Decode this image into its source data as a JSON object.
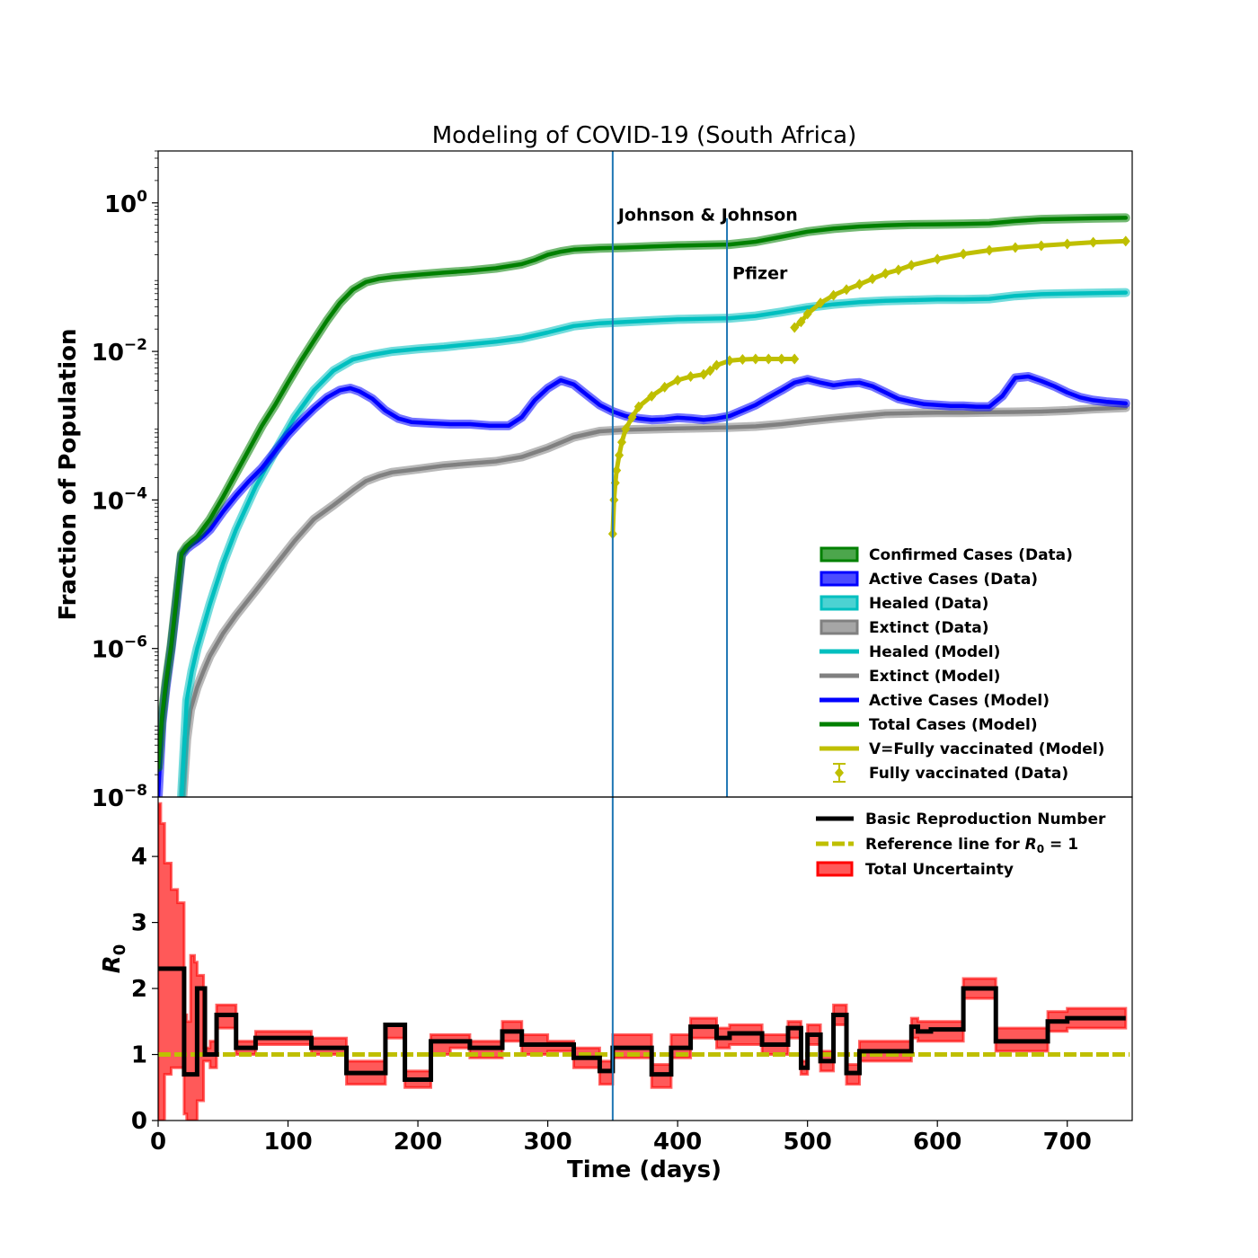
{
  "colors": {
    "confirmed": "#008000",
    "active": "#0000ff",
    "healed": "#00bfbf",
    "extinct": "#808080",
    "vaccinated": "#bfbf00",
    "vline": "#1f77b4",
    "r0": "#000000",
    "uncertainty": "#ff0000"
  },
  "chart_data": [
    {
      "type": "line",
      "title": "Modeling of COVID-19 (South Africa)",
      "xlabel": "",
      "ylabel": "Fraction of Population",
      "xlim": [
        0,
        750
      ],
      "ylim": [
        1e-08,
        5
      ],
      "yscale": "log",
      "yticks": [
        1e-08,
        1e-06,
        0.0001,
        0.01,
        1
      ],
      "ytick_labels": [
        {
          "base": "10",
          "exp": "−8"
        },
        {
          "base": "10",
          "exp": "−6"
        },
        {
          "base": "10",
          "exp": "−4"
        },
        {
          "base": "10",
          "exp": "−2"
        },
        {
          "base": "10",
          "exp": "0"
        }
      ],
      "annotations": [
        {
          "x": 350,
          "text": "Johnson & Johnson",
          "text_y": 0.58
        },
        {
          "x": 438,
          "text": "Pfizer",
          "text_y": 0.095
        }
      ],
      "legend_position": "lower-right",
      "series": [
        {
          "key": "extinct",
          "name": "Extinct (Model)",
          "x": [
            19,
            22,
            25,
            30,
            35,
            40,
            50,
            60,
            75,
            90,
            105,
            120,
            135,
            150,
            160,
            170,
            180,
            200,
            220,
            240,
            260,
            280,
            300,
            320,
            340,
            360,
            380,
            400,
            420,
            440,
            460,
            480,
            500,
            520,
            540,
            560,
            580,
            600,
            620,
            640,
            660,
            680,
            700,
            720,
            745
          ],
          "y": [
            1e-08,
            6e-08,
            1.5e-07,
            3e-07,
            5e-07,
            8e-07,
            1.6e-06,
            2.8e-06,
            6e-06,
            1.3e-05,
            2.8e-05,
            5.5e-05,
            8.5e-05,
            0.000135,
            0.00018,
            0.00021,
            0.000235,
            0.00026,
            0.00029,
            0.00031,
            0.00033,
            0.00038,
            0.0005,
            0.0007,
            0.00084,
            0.00088,
            0.0009,
            0.00092,
            0.00093,
            0.00095,
            0.00098,
            0.00105,
            0.00115,
            0.00125,
            0.00135,
            0.00145,
            0.00148,
            0.0015,
            0.0015,
            0.00152,
            0.00153,
            0.00155,
            0.0016,
            0.00168,
            0.00175
          ]
        },
        {
          "key": "healed",
          "name": "Healed (Model)",
          "x": [
            18,
            22,
            26,
            30,
            35,
            40,
            50,
            60,
            75,
            90,
            105,
            120,
            135,
            150,
            165,
            180,
            200,
            220,
            240,
            260,
            280,
            300,
            320,
            340,
            360,
            380,
            400,
            420,
            440,
            460,
            480,
            500,
            520,
            540,
            560,
            580,
            600,
            620,
            640,
            660,
            680,
            700,
            720,
            745
          ],
          "y": [
            1e-08,
            2e-07,
            5e-07,
            1e-06,
            2e-06,
            4e-06,
            1.4e-05,
            4e-05,
            0.00015,
            0.00045,
            0.0013,
            0.003,
            0.0055,
            0.0078,
            0.009,
            0.01,
            0.0108,
            0.0115,
            0.0125,
            0.0135,
            0.015,
            0.018,
            0.022,
            0.024,
            0.025,
            0.026,
            0.027,
            0.0275,
            0.028,
            0.03,
            0.034,
            0.039,
            0.043,
            0.046,
            0.048,
            0.049,
            0.05,
            0.05,
            0.051,
            0.056,
            0.059,
            0.06,
            0.061,
            0.062
          ]
        },
        {
          "key": "active",
          "name": "Active Cases (Model)",
          "x": [
            0,
            3,
            6,
            10,
            14,
            18,
            22,
            26,
            30,
            35,
            40,
            50,
            60,
            70,
            80,
            90,
            100,
            110,
            120,
            130,
            140,
            148,
            155,
            165,
            175,
            185,
            195,
            210,
            225,
            240,
            255,
            270,
            280,
            290,
            300,
            310,
            320,
            330,
            340,
            350,
            360,
            370,
            380,
            390,
            400,
            410,
            420,
            430,
            440,
            450,
            460,
            470,
            480,
            490,
            500,
            510,
            520,
            530,
            540,
            550,
            560,
            570,
            580,
            590,
            600,
            610,
            620,
            630,
            640,
            650,
            660,
            670,
            680,
            690,
            700,
            710,
            720,
            730,
            745
          ],
          "y": [
            1e-08,
            1e-07,
            3e-07,
            1e-06,
            4e-06,
            1.8e-05,
            2.2e-05,
            2.5e-05,
            2.8e-05,
            3.3e-05,
            4e-05,
            7e-05,
            0.000115,
            0.00018,
            0.00027,
            0.00045,
            0.00075,
            0.00115,
            0.0017,
            0.0024,
            0.003,
            0.0032,
            0.0029,
            0.0023,
            0.0016,
            0.00125,
            0.00112,
            0.00108,
            0.00105,
            0.00105,
            0.001,
            0.001,
            0.0013,
            0.0022,
            0.0032,
            0.0041,
            0.0036,
            0.0026,
            0.0019,
            0.00155,
            0.00135,
            0.00125,
            0.0012,
            0.00122,
            0.00128,
            0.00125,
            0.0012,
            0.00125,
            0.00135,
            0.0016,
            0.0019,
            0.0024,
            0.003,
            0.0038,
            0.0042,
            0.0038,
            0.0035,
            0.0037,
            0.0038,
            0.0034,
            0.0028,
            0.0023,
            0.0021,
            0.00195,
            0.0019,
            0.00185,
            0.00185,
            0.0018,
            0.0018,
            0.0025,
            0.0044,
            0.0046,
            0.004,
            0.0034,
            0.0028,
            0.0024,
            0.0022,
            0.0021,
            0.002
          ]
        },
        {
          "key": "confirmed",
          "name": "Total Cases (Model)",
          "x": [
            0,
            3,
            6,
            10,
            14,
            18,
            22,
            26,
            30,
            35,
            40,
            50,
            60,
            70,
            80,
            90,
            100,
            110,
            120,
            130,
            140,
            150,
            160,
            170,
            180,
            200,
            220,
            240,
            260,
            280,
            290,
            300,
            310,
            320,
            340,
            360,
            380,
            400,
            420,
            440,
            460,
            480,
            500,
            520,
            540,
            560,
            580,
            600,
            620,
            640,
            660,
            680,
            700,
            720,
            745
          ],
          "y": [
            2.5e-08,
            1.2e-07,
            3.5e-07,
            1.1e-06,
            4.5e-06,
            1.9e-05,
            2.4e-05,
            2.8e-05,
            3.2e-05,
            4.2e-05,
            5.5e-05,
            0.00011,
            0.00023,
            0.00048,
            0.001,
            0.0019,
            0.0038,
            0.0075,
            0.014,
            0.026,
            0.045,
            0.068,
            0.086,
            0.095,
            0.1,
            0.108,
            0.115,
            0.122,
            0.132,
            0.15,
            0.17,
            0.2,
            0.22,
            0.235,
            0.245,
            0.25,
            0.258,
            0.265,
            0.27,
            0.275,
            0.3,
            0.35,
            0.41,
            0.45,
            0.48,
            0.5,
            0.51,
            0.515,
            0.52,
            0.53,
            0.57,
            0.6,
            0.61,
            0.62,
            0.63
          ]
        },
        {
          "key": "vaccinated",
          "name": "V=Fully vaccinated (Model)",
          "x": [
            350,
            351,
            352,
            353,
            355,
            357,
            360,
            365,
            370,
            380,
            390,
            400,
            410,
            420,
            425,
            430,
            440,
            450,
            460,
            470,
            480,
            490
          ],
          "y": [
            3.5e-05,
            0.0001,
            0.00017,
            0.00025,
            0.0004,
            0.0006,
            0.0009,
            0.0013,
            0.0018,
            0.0025,
            0.0033,
            0.0041,
            0.0046,
            0.0049,
            0.0055,
            0.0065,
            0.0075,
            0.0078,
            0.0079,
            0.0079,
            0.0079,
            0.0079
          ]
        },
        {
          "key": "vaccinated",
          "name": "",
          "x": [
            490,
            495,
            500,
            510,
            520,
            530,
            540,
            550,
            560,
            570,
            580,
            600,
            620,
            640,
            660,
            680,
            700,
            720,
            745
          ],
          "y": [
            0.021,
            0.025,
            0.032,
            0.045,
            0.057,
            0.068,
            0.08,
            0.095,
            0.112,
            0.125,
            0.145,
            0.175,
            0.205,
            0.23,
            0.25,
            0.265,
            0.28,
            0.295,
            0.305
          ]
        }
      ],
      "legend": [
        {
          "label": "Confirmed Cases (Data)",
          "style": "patch",
          "color": "#008000"
        },
        {
          "label": "Active Cases (Data)",
          "style": "patch",
          "color": "#0000ff"
        },
        {
          "label": "Healed (Data)",
          "style": "patch",
          "color": "#00bfbf"
        },
        {
          "label": "Extinct (Data)",
          "style": "patch",
          "color": "#808080"
        },
        {
          "label": "Healed (Model)",
          "style": "line",
          "color": "#00bfbf"
        },
        {
          "label": "Extinct (Model)",
          "style": "line",
          "color": "#808080"
        },
        {
          "label": "Active Cases (Model)",
          "style": "line",
          "color": "#0000ff"
        },
        {
          "label": "Total Cases (Model)",
          "style": "line",
          "color": "#008000"
        },
        {
          "label": "V=Fully vaccinated (Model)",
          "style": "line",
          "color": "#bfbf00"
        },
        {
          "label": "Fully vaccinated (Data)",
          "style": "errorbar",
          "color": "#bfbf00"
        }
      ]
    },
    {
      "type": "line",
      "title": "",
      "xlabel": "Time (days)",
      "ylabel": "R0",
      "xlim": [
        0,
        750
      ],
      "ylim": [
        0,
        4.9
      ],
      "xticks": [
        0,
        100,
        200,
        300,
        400,
        500,
        600,
        700
      ],
      "yticks": [
        0,
        1,
        2,
        3,
        4
      ],
      "legend_position": "upper-right",
      "r0_steps": {
        "x": [
          0,
          18,
          20,
          28,
          30,
          36,
          45,
          60,
          75,
          80,
          118,
          145,
          175,
          190,
          210,
          225,
          240,
          265,
          280,
          300,
          320,
          340,
          350,
          370,
          380,
          395,
          410,
          430,
          440,
          450,
          455,
          465,
          485,
          495,
          500,
          510,
          520,
          530,
          540,
          560,
          580,
          585,
          595,
          620,
          625,
          640,
          645,
          660,
          685,
          700,
          745
        ],
        "y": [
          2.3,
          2.3,
          0.7,
          0.7,
          2.0,
          1.0,
          1.6,
          1.1,
          1.25,
          1.25,
          1.1,
          0.72,
          1.45,
          0.62,
          1.2,
          1.2,
          1.1,
          1.35,
          1.15,
          1.15,
          0.95,
          0.75,
          1.1,
          1.1,
          0.7,
          1.1,
          1.42,
          1.25,
          1.32,
          1.32,
          1.32,
          1.15,
          1.4,
          0.8,
          1.3,
          0.9,
          1.6,
          0.72,
          1.05,
          1.05,
          1.42,
          1.35,
          1.38,
          2.0,
          2.0,
          2.0,
          1.2,
          1.2,
          1.5,
          1.55,
          1.55
        ]
      },
      "uncertainty": {
        "x": [
          0,
          2,
          5,
          10,
          15,
          18,
          20,
          22,
          25,
          28,
          30,
          35,
          40,
          45,
          60,
          75,
          80,
          118,
          145,
          175,
          190,
          210,
          225,
          240,
          265,
          280,
          300,
          320,
          340,
          350,
          370,
          380,
          395,
          410,
          430,
          440,
          465,
          485,
          495,
          500,
          510,
          520,
          530,
          540,
          560,
          580,
          585,
          595,
          620,
          640,
          645,
          660,
          685,
          700,
          745
        ],
        "lo": [
          0,
          0,
          0.7,
          0.8,
          0.8,
          0.8,
          0.1,
          0,
          0,
          0,
          0.3,
          0.9,
          0.8,
          1.4,
          1.0,
          1.15,
          1.15,
          1.0,
          0.55,
          1.25,
          0.5,
          1.0,
          1.1,
          0.95,
          1.2,
          1.0,
          1.05,
          0.8,
          0.55,
          0.95,
          0.95,
          0.5,
          0.95,
          1.25,
          1.1,
          1.15,
          1.0,
          1.25,
          0.7,
          1.15,
          0.75,
          1.45,
          0.55,
          0.9,
          0.9,
          1.25,
          1.2,
          1.2,
          1.85,
          1.85,
          1.05,
          1.05,
          1.35,
          1.4,
          1.4
        ],
        "hi": [
          4.8,
          4.5,
          3.9,
          3.5,
          3.3,
          3.3,
          1.6,
          1.5,
          2.5,
          2.4,
          2.2,
          1.1,
          1.2,
          1.75,
          1.2,
          1.35,
          1.35,
          1.25,
          0.9,
          1.45,
          0.75,
          1.3,
          1.3,
          1.2,
          1.5,
          1.3,
          1.2,
          1.1,
          0.9,
          1.3,
          1.3,
          0.85,
          1.3,
          1.55,
          1.4,
          1.45,
          1.3,
          1.5,
          0.9,
          1.45,
          1.05,
          1.75,
          0.85,
          1.2,
          1.2,
          1.55,
          1.5,
          1.5,
          2.15,
          2.15,
          1.4,
          1.4,
          1.65,
          1.7,
          1.7
        ]
      },
      "reference_line": {
        "y": 1
      },
      "legend": [
        {
          "label_main": "Basic Reproduction Number",
          "style": "line",
          "color": "#000000"
        },
        {
          "label_main": "Reference line for ",
          "label_sym": "R",
          "label_sub": "0",
          "label_tail": " = 1",
          "style": "dash",
          "color": "#bfbf00"
        },
        {
          "label_main": "Total Uncertainty",
          "style": "patch",
          "color": "#ff0000"
        }
      ]
    }
  ]
}
